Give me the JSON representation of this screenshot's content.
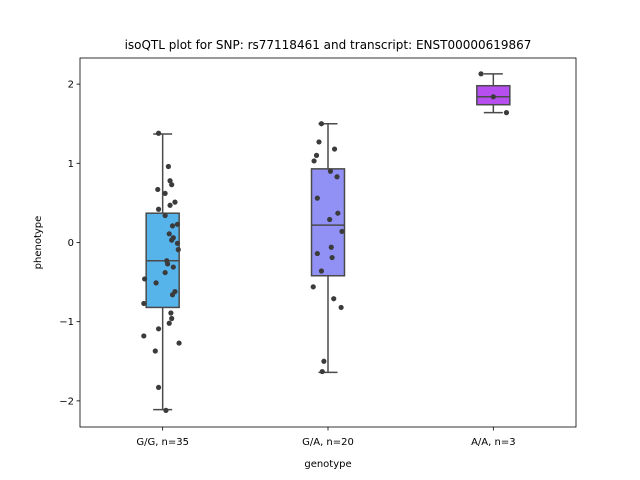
{
  "chart_data": {
    "type": "box",
    "title": "isoQTL plot for SNP: rs77118461 and transcript: ENST00000619867",
    "xlabel": "genotype",
    "ylabel": "phenotype",
    "ylim": [
      -2.33,
      2.33
    ],
    "yticks": [
      -2,
      -1,
      0,
      1,
      2
    ],
    "yticklabels": [
      "−2",
      "−1",
      "0",
      "1",
      "2"
    ],
    "grid": false,
    "categories": [
      "G/G, n=35",
      "G/A, n=20",
      "A/A, n=3"
    ],
    "boxes": [
      {
        "category": "G/G, n=35",
        "color": "#56b4eb",
        "q1": -0.82,
        "median": -0.23,
        "q3": 0.37,
        "whisker_low": -2.11,
        "whisker_high": 1.37,
        "points": [
          {
            "dx": -0.05,
            "y": 1.38
          },
          {
            "dx": 0.07,
            "y": 0.96
          },
          {
            "dx": 0.09,
            "y": 0.78
          },
          {
            "dx": 0.11,
            "y": 0.73
          },
          {
            "dx": -0.06,
            "y": 0.67
          },
          {
            "dx": 0.03,
            "y": 0.62
          },
          {
            "dx": 0.15,
            "y": 0.51
          },
          {
            "dx": 0.09,
            "y": 0.47
          },
          {
            "dx": -0.05,
            "y": 0.42
          },
          {
            "dx": 0.03,
            "y": 0.34
          },
          {
            "dx": 0.18,
            "y": 0.23
          },
          {
            "dx": 0.12,
            "y": 0.21
          },
          {
            "dx": 0.08,
            "y": 0.11
          },
          {
            "dx": 0.13,
            "y": 0.06
          },
          {
            "dx": 0.11,
            "y": 0.03
          },
          {
            "dx": 0.18,
            "y": -0.01
          },
          {
            "dx": 0.19,
            "y": -0.09
          },
          {
            "dx": 0.05,
            "y": -0.23
          },
          {
            "dx": 0.06,
            "y": -0.27
          },
          {
            "dx": 0.13,
            "y": -0.31
          },
          {
            "dx": 0.03,
            "y": -0.38
          },
          {
            "dx": -0.22,
            "y": -0.46
          },
          {
            "dx": -0.08,
            "y": -0.51
          },
          {
            "dx": 0.15,
            "y": -0.62
          },
          {
            "dx": 0.12,
            "y": -0.66
          },
          {
            "dx": -0.23,
            "y": -0.77
          },
          {
            "dx": 0.1,
            "y": -0.89
          },
          {
            "dx": 0.11,
            "y": -0.96
          },
          {
            "dx": 0.08,
            "y": -1.02
          },
          {
            "dx": -0.05,
            "y": -1.09
          },
          {
            "dx": -0.23,
            "y": -1.18
          },
          {
            "dx": 0.2,
            "y": -1.27
          },
          {
            "dx": -0.09,
            "y": -1.37
          },
          {
            "dx": -0.05,
            "y": -1.83
          },
          {
            "dx": 0.04,
            "y": -2.12
          }
        ]
      },
      {
        "category": "G/A, n=20",
        "color": "#9090f5",
        "q1": -0.42,
        "median": 0.22,
        "q3": 0.93,
        "whisker_low": -1.64,
        "whisker_high": 1.5,
        "points": [
          {
            "dx": -0.08,
            "y": 1.5
          },
          {
            "dx": -0.11,
            "y": 1.27
          },
          {
            "dx": 0.08,
            "y": 1.18
          },
          {
            "dx": -0.14,
            "y": 1.1
          },
          {
            "dx": -0.17,
            "y": 1.03
          },
          {
            "dx": 0.03,
            "y": 0.9
          },
          {
            "dx": 0.11,
            "y": 0.83
          },
          {
            "dx": -0.13,
            "y": 0.56
          },
          {
            "dx": 0.12,
            "y": 0.37
          },
          {
            "dx": 0.02,
            "y": 0.29
          },
          {
            "dx": 0.17,
            "y": 0.14
          },
          {
            "dx": 0.04,
            "y": -0.06
          },
          {
            "dx": -0.13,
            "y": -0.14
          },
          {
            "dx": 0.05,
            "y": -0.19
          },
          {
            "dx": -0.08,
            "y": -0.36
          },
          {
            "dx": -0.18,
            "y": -0.56
          },
          {
            "dx": 0.07,
            "y": -0.71
          },
          {
            "dx": 0.16,
            "y": -0.82
          },
          {
            "dx": -0.05,
            "y": -1.5
          },
          {
            "dx": -0.07,
            "y": -1.63
          }
        ]
      },
      {
        "category": "A/A, n=3",
        "color": "#b64ef0",
        "q1": 1.74,
        "median": 1.84,
        "q3": 1.98,
        "whisker_low": 1.64,
        "whisker_high": 2.13,
        "points": [
          {
            "dx": -0.15,
            "y": 2.13
          },
          {
            "dx": 0.0,
            "y": 1.84
          },
          {
            "dx": 0.16,
            "y": 1.64
          }
        ]
      }
    ]
  }
}
